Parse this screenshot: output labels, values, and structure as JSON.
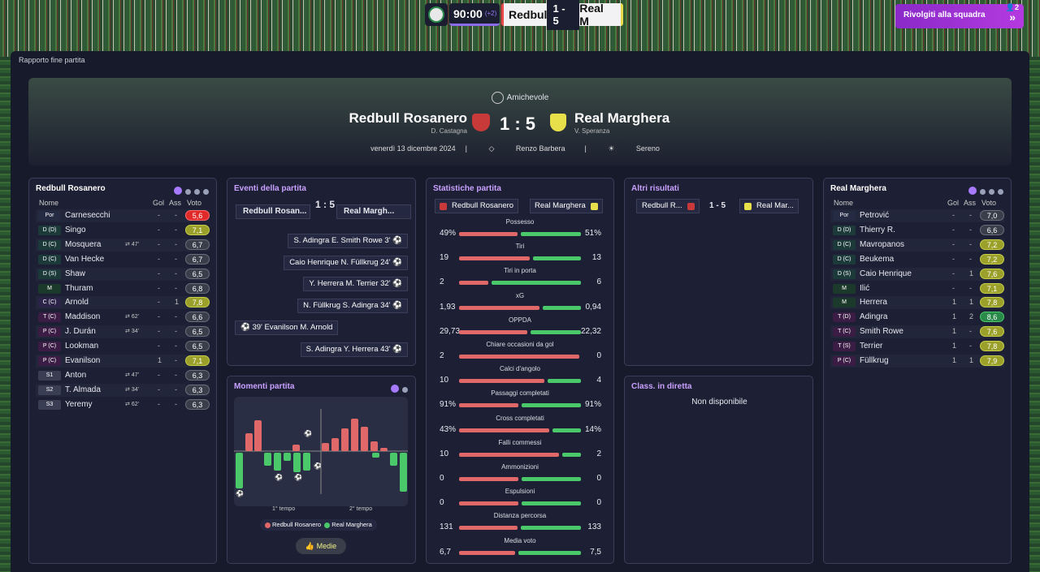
{
  "topbar": {
    "clock": "90:00",
    "added_time": "(+2)",
    "home_short": "Redbul",
    "score": "1 - 5",
    "away_short": "Real M",
    "action_button": "Rivolgiti alla squadra",
    "badge_count": "2"
  },
  "breadcrumb": "Rapporto fine partita",
  "header": {
    "competition": "Amichevole",
    "home_team": "Redbull Rosanero",
    "home_manager": "D. Castagna",
    "away_team": "Real Marghera",
    "away_manager": "V. Speranza",
    "score": "1 : 5",
    "date": "venerdì 13 dicembre 2024",
    "stadium": "Renzo Barbera",
    "weather": "Sereno"
  },
  "columns": {
    "name": "Nome",
    "goals": "Gol",
    "assists": "Ass",
    "rating": "Voto"
  },
  "home_lineup": {
    "title": "Redbull Rosanero",
    "players": [
      {
        "pos": "Por",
        "name": "Carnesecchi",
        "sub": "",
        "gol": "-",
        "ass": "-",
        "voto": "5,6",
        "tone": "red"
      },
      {
        "pos": "D (D)",
        "name": "Singo",
        "sub": "",
        "gol": "-",
        "ass": "-",
        "voto": "7,1",
        "tone": "yel"
      },
      {
        "pos": "D (C)",
        "name": "Mosquera",
        "sub": "47'",
        "gol": "-",
        "ass": "-",
        "voto": "6,7",
        "tone": ""
      },
      {
        "pos": "D (C)",
        "name": "Van Hecke",
        "sub": "",
        "gol": "-",
        "ass": "-",
        "voto": "6,7",
        "tone": ""
      },
      {
        "pos": "D (S)",
        "name": "Shaw",
        "sub": "",
        "gol": "-",
        "ass": "-",
        "voto": "6,5",
        "tone": ""
      },
      {
        "pos": "M",
        "name": "Thuram",
        "sub": "",
        "gol": "-",
        "ass": "-",
        "voto": "6,8",
        "tone": ""
      },
      {
        "pos": "C (C)",
        "name": "Arnold",
        "sub": "",
        "gol": "-",
        "ass": "1",
        "voto": "7,8",
        "tone": "yel"
      },
      {
        "pos": "T (C)",
        "name": "Maddison",
        "sub": "62'",
        "gol": "-",
        "ass": "-",
        "voto": "6,6",
        "tone": ""
      },
      {
        "pos": "P (C)",
        "name": "J. Durán",
        "sub": "34'",
        "gol": "-",
        "ass": "-",
        "voto": "6,5",
        "tone": ""
      },
      {
        "pos": "P (C)",
        "name": "Lookman",
        "sub": "",
        "gol": "-",
        "ass": "-",
        "voto": "6,5",
        "tone": ""
      },
      {
        "pos": "P (C)",
        "name": "Evanilson",
        "sub": "",
        "gol": "1",
        "ass": "-",
        "voto": "7,1",
        "tone": "yel"
      },
      {
        "pos": "S1",
        "name": "Anton",
        "sub": "47'",
        "gol": "-",
        "ass": "-",
        "voto": "6,3",
        "tone": ""
      },
      {
        "pos": "S2",
        "name": "T. Almada",
        "sub": "34'",
        "gol": "-",
        "ass": "-",
        "voto": "6,3",
        "tone": ""
      },
      {
        "pos": "S3",
        "name": "Yeremy",
        "sub": "62'",
        "gol": "-",
        "ass": "-",
        "voto": "6,3",
        "tone": ""
      }
    ]
  },
  "away_lineup": {
    "title": "Real Marghera",
    "players": [
      {
        "pos": "Por",
        "name": "Petrović",
        "gol": "-",
        "ass": "-",
        "voto": "7,0",
        "tone": ""
      },
      {
        "pos": "D (D)",
        "name": "Thierry R.",
        "gol": "-",
        "ass": "-",
        "voto": "6,6",
        "tone": ""
      },
      {
        "pos": "D (C)",
        "name": "Mavropanos",
        "gol": "-",
        "ass": "-",
        "voto": "7,2",
        "tone": "yel"
      },
      {
        "pos": "D (C)",
        "name": "Beukema",
        "gol": "-",
        "ass": "-",
        "voto": "7,2",
        "tone": "yel"
      },
      {
        "pos": "D (S)",
        "name": "Caio Henrique",
        "gol": "-",
        "ass": "1",
        "voto": "7,6",
        "tone": "yel"
      },
      {
        "pos": "M",
        "name": "Ilić",
        "gol": "-",
        "ass": "-",
        "voto": "7,1",
        "tone": "yel"
      },
      {
        "pos": "M",
        "name": "Herrera",
        "gol": "1",
        "ass": "1",
        "voto": "7,8",
        "tone": "yel"
      },
      {
        "pos": "T (D)",
        "name": "Adingra",
        "gol": "1",
        "ass": "2",
        "voto": "8,6",
        "tone": "grn"
      },
      {
        "pos": "T (C)",
        "name": "Smith Rowe",
        "gol": "1",
        "ass": "-",
        "voto": "7,6",
        "tone": "yel"
      },
      {
        "pos": "T (S)",
        "name": "Terrier",
        "gol": "1",
        "ass": "-",
        "voto": "7,8",
        "tone": "yel"
      },
      {
        "pos": "P (C)",
        "name": "Füllkrug",
        "gol": "1",
        "ass": "1",
        "voto": "7,9",
        "tone": "yel"
      }
    ]
  },
  "events": {
    "title": "Eventi della partita",
    "home": "Redbull Rosan...",
    "score": "1 : 5",
    "away": "Real Margh...",
    "items": [
      {
        "side": "away",
        "text": "S. Adingra  E. Smith Rowe  3'"
      },
      {
        "side": "away",
        "text": "Caio Henrique  N. Füllkrug  24'"
      },
      {
        "side": "away",
        "text": "Y. Herrera  M. Terrier  32'"
      },
      {
        "side": "away",
        "text": "N. Füllkrug  S. Adingra  34'"
      },
      {
        "side": "home",
        "text": "39'  Evanilson  M. Arnold"
      },
      {
        "side": "away",
        "text": "S. Adingra  Y. Herrera  43'"
      }
    ]
  },
  "moments": {
    "title": "Momenti partita",
    "half1": "1° tempo",
    "half2": "2° tempo",
    "legend_home": "Redbull Rosanero",
    "legend_away": "Real Marghera",
    "button": "Medie"
  },
  "stats": {
    "title": "Statistiche partita",
    "home": "Redbull Rosanero",
    "away": "Real Marghera",
    "rows": [
      {
        "label": "Possesso",
        "home": "49%",
        "away": "51%",
        "h": 49,
        "a": 51
      },
      {
        "label": "Tiri",
        "home": "19",
        "away": "13",
        "h": 19,
        "a": 13
      },
      {
        "label": "Tiri in porta",
        "home": "2",
        "away": "6",
        "h": 2,
        "a": 6
      },
      {
        "label": "xG",
        "home": "1,93",
        "away": "0,94",
        "h": 1.93,
        "a": 0.94
      },
      {
        "label": "OPPDA",
        "home": "29,73",
        "away": "22,32",
        "h": 29.73,
        "a": 22.32
      },
      {
        "label": "Chiare occasioni da gol",
        "home": "2",
        "away": "0",
        "h": 2,
        "a": 0
      },
      {
        "label": "Calci d'angolo",
        "home": "10",
        "away": "4",
        "h": 10,
        "a": 4
      },
      {
        "label": "Passaggi completati",
        "home": "91%",
        "away": "91%",
        "h": 91,
        "a": 91
      },
      {
        "label": "Cross completati",
        "home": "43%",
        "away": "14%",
        "h": 43,
        "a": 14
      },
      {
        "label": "Falli commessi",
        "home": "10",
        "away": "2",
        "h": 10,
        "a": 2
      },
      {
        "label": "Ammonizioni",
        "home": "0",
        "away": "0",
        "h": 0,
        "a": 0
      },
      {
        "label": "Espulsioni",
        "home": "0",
        "away": "0",
        "h": 0,
        "a": 0
      },
      {
        "label": "Distanza percorsa",
        "home": "131",
        "away": "133",
        "h": 131,
        "a": 133
      },
      {
        "label": "Media voto",
        "home": "6,7",
        "away": "7,5",
        "h": 6.7,
        "a": 7.5
      }
    ]
  },
  "other_results": {
    "title": "Altri risultati",
    "home": "Redbull R...",
    "score": "1 - 5",
    "away": "Real Mar..."
  },
  "live_table": {
    "title": "Class. in diretta",
    "text": "Non disponibile"
  },
  "colors": {
    "home": "#e06868",
    "away": "#4ac86a",
    "accent": "#a87aff"
  }
}
